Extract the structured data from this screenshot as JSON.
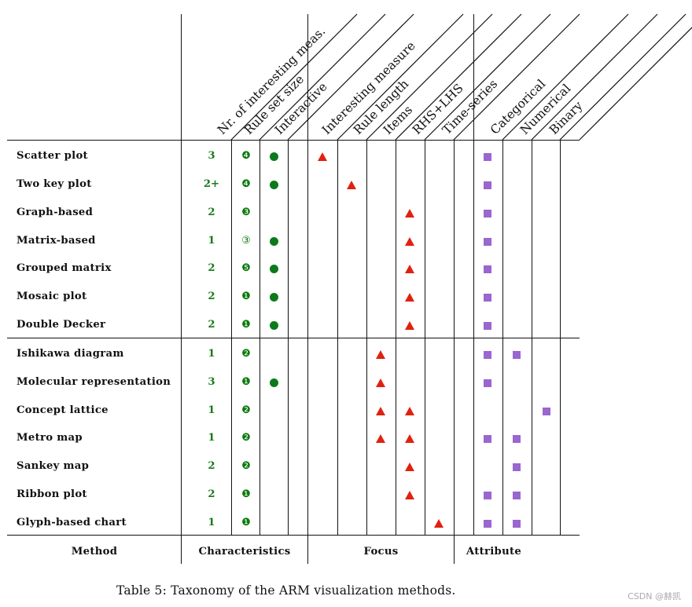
{
  "table": {
    "column_headers": [
      "Nr. of interesting meas.",
      "Rule set size",
      "Interactive",
      "Interesting measure",
      "Rule length",
      "Items",
      "RHS+LHS",
      "Time-series",
      "Categorical",
      "Numerical",
      "Binary"
    ],
    "group_labels": [
      "Method",
      "Characteristics",
      "Focus",
      "Attribute"
    ],
    "rows": [
      {
        "method": "Scatter plot",
        "meas": "3",
        "rule_set_size": "❹",
        "interactive": true,
        "focus": [
          0
        ],
        "attribute": [
          8
        ]
      },
      {
        "method": "Two key plot",
        "meas": "2+",
        "rule_set_size": "❹",
        "interactive": true,
        "focus": [
          1
        ],
        "attribute": [
          8
        ]
      },
      {
        "method": "Graph-based",
        "meas": "2",
        "rule_set_size": "❸",
        "interactive": false,
        "focus": [
          3
        ],
        "attribute": [
          8
        ]
      },
      {
        "method": "Matrix-based",
        "meas": "1",
        "rule_set_size": "③",
        "interactive": true,
        "focus": [
          3
        ],
        "attribute": [
          8
        ]
      },
      {
        "method": "Grouped matrix",
        "meas": "2",
        "rule_set_size": "❺",
        "interactive": true,
        "focus": [
          3
        ],
        "attribute": [
          8
        ]
      },
      {
        "method": "Mosaic plot",
        "meas": "2",
        "rule_set_size": "❶",
        "interactive": true,
        "focus": [
          3
        ],
        "attribute": [
          8
        ]
      },
      {
        "method": "Double Decker",
        "meas": "2",
        "rule_set_size": "❶",
        "interactive": true,
        "focus": [
          3
        ],
        "attribute": [
          8
        ]
      },
      {
        "method": "Ishikawa diagram",
        "meas": "1",
        "rule_set_size": "❷",
        "interactive": false,
        "focus": [
          2
        ],
        "attribute": [
          8,
          9
        ]
      },
      {
        "method": "Molecular representation",
        "meas": "3",
        "rule_set_size": "❶",
        "interactive": true,
        "focus": [
          2
        ],
        "attribute": [
          8
        ]
      },
      {
        "method": "Concept lattice",
        "meas": "1",
        "rule_set_size": "❷",
        "interactive": false,
        "focus": [
          2,
          3
        ],
        "attribute": [
          10
        ]
      },
      {
        "method": "Metro map",
        "meas": "1",
        "rule_set_size": "❷",
        "interactive": false,
        "focus": [
          2,
          3
        ],
        "attribute": [
          8,
          9
        ]
      },
      {
        "method": "Sankey map",
        "meas": "2",
        "rule_set_size": "❷",
        "interactive": false,
        "focus": [
          3
        ],
        "attribute": [
          9
        ]
      },
      {
        "method": "Ribbon plot",
        "meas": "2",
        "rule_set_size": "❶",
        "interactive": false,
        "focus": [
          3
        ],
        "attribute": [
          8,
          9
        ]
      },
      {
        "method": "Glyph-based chart",
        "meas": "1",
        "rule_set_size": "❶",
        "interactive": false,
        "focus": [
          4
        ],
        "attribute": [
          8,
          9
        ]
      }
    ]
  },
  "caption": "Table 5: Taxonomy of the ARM visualization methods.",
  "watermark": "CSDN @赫凯",
  "colors": {
    "characteristics": "#0c7a1c",
    "focus": "#e0210f",
    "attribute": "#9a66cf",
    "rule": "#111111"
  },
  "icons": {
    "interactive": "filled-circle-icon",
    "focus": "red-triangle-icon",
    "attribute": "purple-square-icon"
  }
}
